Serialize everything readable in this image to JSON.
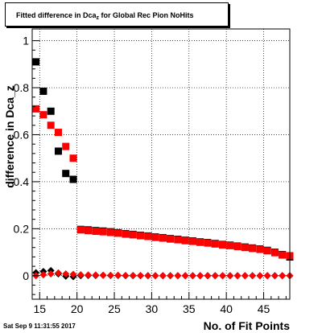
{
  "title_main": "Fitted difference in Dca",
  "title_sub": "z",
  "title_rest": " for Global Rec Pion NoHits",
  "timestamp": "Sat Sep  9 11:31:55 2017",
  "chart_data": {
    "type": "scatter",
    "title": "Fitted difference in Dca_z for Global Rec Pion NoHits",
    "xlabel": "No. of Fit Points",
    "ylabel": "difference in Dca_z",
    "xlim": [
      14,
      48.5
    ],
    "ylim": [
      -0.1,
      1.05
    ],
    "grid": true,
    "x_ticks": [
      15,
      20,
      25,
      30,
      35,
      40,
      45
    ],
    "x_tick_labels": [
      "15",
      "20",
      "25",
      "30",
      "35",
      "40",
      "45"
    ],
    "y_ticks": [
      0,
      0.2,
      0.4,
      0.6,
      0.8,
      1
    ],
    "y_tick_labels": [
      "0",
      "0.2",
      "0.4",
      "0.6",
      "0.8",
      "1"
    ],
    "series": [
      {
        "color": "#000000",
        "marker": "square",
        "x": [
          14.5,
          15.5,
          16.5,
          17.5,
          18.5,
          19.5,
          20.5,
          21.5,
          22.5,
          23.5,
          24.5,
          25.5,
          26.5,
          27.5,
          28.5,
          29.5,
          30.5,
          31.5,
          32.5,
          33.5,
          34.5,
          35.5,
          36.5,
          37.5,
          38.5,
          39.5,
          40.5,
          41.5,
          42.5,
          43.5,
          44.5,
          45.5,
          46.5,
          47.5,
          48.5
        ],
        "y": [
          0.91,
          0.785,
          0.7,
          0.53,
          0.435,
          0.41,
          0.197,
          0.195,
          0.192,
          0.19,
          0.187,
          0.183,
          0.179,
          0.176,
          0.172,
          0.169,
          0.165,
          0.162,
          0.158,
          0.155,
          0.151,
          0.148,
          0.144,
          0.141,
          0.137,
          0.133,
          0.13,
          0.126,
          0.122,
          0.118,
          0.114,
          0.108,
          0.1,
          0.09,
          0.08
        ]
      },
      {
        "color": "#ff0000",
        "marker": "square",
        "x": [
          14.5,
          15.5,
          16.5,
          17.5,
          18.5,
          19.5,
          20.5,
          21.5,
          22.5,
          23.5,
          24.5,
          25.5,
          26.5,
          27.5,
          28.5,
          29.5,
          30.5,
          31.5,
          32.5,
          33.5,
          34.5,
          35.5,
          36.5,
          37.5,
          38.5,
          39.5,
          40.5,
          41.5,
          42.5,
          43.5,
          44.5,
          45.5,
          46.5,
          47.5,
          48.5
        ],
        "y": [
          0.71,
          0.685,
          0.64,
          0.61,
          0.55,
          0.5,
          0.195,
          0.192,
          0.189,
          0.187,
          0.184,
          0.181,
          0.177,
          0.174,
          0.17,
          0.167,
          0.163,
          0.16,
          0.156,
          0.153,
          0.149,
          0.146,
          0.142,
          0.139,
          0.135,
          0.131,
          0.128,
          0.124,
          0.12,
          0.116,
          0.112,
          0.106,
          0.098,
          0.088,
          0.085
        ]
      },
      {
        "color": "#000000",
        "marker": "diamond",
        "x": [
          14.5,
          15.5,
          16.5,
          17.5,
          18.5,
          19.5,
          20.5,
          21.5,
          22.5,
          23.5,
          24.5,
          25.5,
          26.5,
          27.5,
          28.5,
          29.5,
          30.5,
          31.5,
          32.5,
          33.5,
          34.5,
          35.5,
          36.5,
          37.5,
          38.5,
          39.5,
          40.5,
          41.5,
          42.5,
          43.5,
          44.5,
          45.5,
          46.5,
          47.5,
          48.5
        ],
        "y": [
          0.013,
          0.018,
          0.022,
          0.008,
          -0.002,
          -0.004,
          0.0,
          0.001,
          0.001,
          0.002,
          0.001,
          0.001,
          0.0,
          0.0,
          0.0,
          0.0,
          0.0,
          0.0,
          0.0,
          0.0,
          0.0,
          0.0,
          0.0,
          0.0,
          0.0,
          0.0,
          0.0,
          0.0,
          0.0,
          0.0,
          0.0,
          0.0,
          0.0,
          0.0,
          0.0
        ]
      },
      {
        "color": "#ff0000",
        "marker": "diamond",
        "x": [
          14.5,
          15.5,
          16.5,
          17.5,
          18.5,
          19.5,
          20.5,
          21.5,
          22.5,
          23.5,
          24.5,
          25.5,
          26.5,
          27.5,
          28.5,
          29.5,
          30.5,
          31.5,
          32.5,
          33.5,
          34.5,
          35.5,
          36.5,
          37.5,
          38.5,
          39.5,
          40.5,
          41.5,
          42.5,
          43.5,
          44.5,
          45.5,
          46.5,
          47.5,
          48.5
        ],
        "y": [
          0.0,
          0.004,
          0.008,
          0.012,
          0.008,
          0.006,
          0.004,
          0.003,
          0.003,
          0.002,
          0.002,
          0.002,
          0.001,
          0.001,
          0.001,
          0.0,
          0.0,
          0.0,
          0.0,
          0.0,
          0.0,
          0.0,
          0.0,
          0.0,
          0.0,
          0.0,
          0.0,
          0.0,
          0.0,
          0.0,
          0.0,
          0.0,
          0.0,
          0.0,
          0.0
        ]
      }
    ]
  }
}
